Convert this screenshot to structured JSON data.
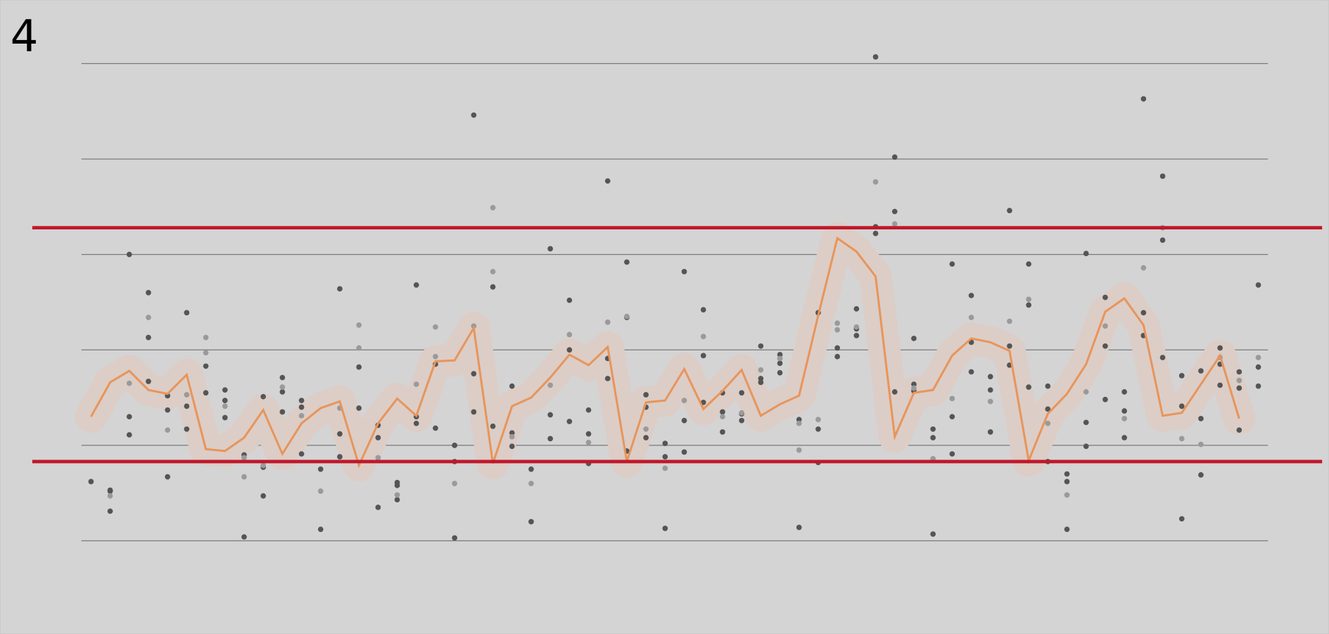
{
  "chart_data": {
    "type": "scatter",
    "title": "4",
    "xlim": [
      -0.5,
      61.5
    ],
    "ylim": [
      0,
      5
    ],
    "yticks": [
      0,
      1,
      2,
      3,
      4,
      5
    ],
    "grid": true,
    "thresholds": [
      0.83,
      3.28
    ],
    "threshold_color": "#c0182a",
    "mean": {
      "color": "#e8955a",
      "halo_color": "#dccdc7",
      "x": [
        0,
        1,
        2,
        3,
        4,
        5,
        6,
        7,
        8,
        9,
        10,
        11,
        12,
        13,
        14,
        15,
        16,
        17,
        18,
        19,
        20,
        21,
        22,
        23,
        24,
        25,
        26,
        27,
        28,
        29,
        30,
        31,
        32,
        33,
        34,
        35,
        36,
        37,
        38,
        39,
        40,
        41,
        42,
        43,
        44,
        45,
        46,
        47,
        48,
        49,
        50,
        51,
        52,
        53,
        54,
        55,
        56,
        57,
        58,
        59,
        60
      ],
      "values": [
        1.3,
        1.66,
        1.78,
        1.58,
        1.54,
        1.74,
        0.96,
        0.94,
        1.08,
        1.37,
        0.91,
        1.23,
        1.39,
        1.46,
        0.79,
        1.23,
        1.49,
        1.31,
        1.88,
        1.89,
        2.23,
        0.81,
        1.41,
        1.5,
        1.71,
        1.95,
        1.84,
        2.03,
        0.83,
        1.45,
        1.47,
        1.8,
        1.38,
        1.57,
        1.79,
        1.31,
        1.43,
        1.52,
        2.36,
        3.17,
        3.03,
        2.77,
        1.09,
        1.55,
        1.58,
        1.94,
        2.12,
        2.08,
        1.99,
        0.84,
        1.33,
        1.54,
        1.85,
        2.4,
        2.54,
        2.26,
        1.31,
        1.34,
        1.64,
        1.94,
        1.28
      ]
    },
    "series": [
      {
        "color": "#555555",
        "x": [
          0,
          1,
          1,
          1,
          2,
          2,
          2,
          3,
          3,
          3,
          4,
          4,
          4,
          5,
          5,
          5,
          6,
          6,
          7,
          7,
          7,
          8,
          8,
          9,
          9,
          9,
          10,
          10,
          10,
          11,
          11,
          11,
          12,
          12,
          13,
          13,
          13,
          14,
          14,
          15,
          15,
          15,
          16,
          16,
          16,
          17,
          17,
          17,
          18,
          18,
          19,
          19,
          19,
          20,
          20,
          20,
          21,
          21,
          22,
          22,
          22,
          23,
          23,
          24,
          24,
          24,
          25,
          25,
          25,
          26,
          26,
          26,
          27,
          27,
          27,
          28,
          28,
          28,
          29,
          29,
          29,
          30,
          30,
          30,
          31,
          31,
          31,
          32,
          32,
          32,
          33,
          33,
          33,
          34,
          34,
          34,
          35,
          35,
          35,
          36,
          36,
          36,
          37,
          37,
          38,
          38,
          38,
          39,
          39,
          40,
          40,
          40,
          41,
          41,
          41,
          42,
          42,
          42,
          43,
          43,
          43,
          44,
          44,
          44,
          45,
          45,
          45,
          46,
          46,
          46,
          47,
          47,
          47,
          48,
          48,
          48,
          49,
          49,
          49,
          50,
          50,
          50,
          51,
          51,
          51,
          52,
          52,
          52,
          53,
          53,
          53,
          54,
          54,
          54,
          55,
          55,
          55,
          56,
          56,
          56,
          57,
          57,
          57,
          58,
          58,
          58,
          59,
          59,
          59,
          60,
          60,
          60,
          61,
          61,
          61
        ],
        "values": [
          0.62,
          0.53,
          0.31,
          0.52,
          3.0,
          1.3,
          1.11,
          2.6,
          2.13,
          1.67,
          1.52,
          1.37,
          0.67,
          2.39,
          1.41,
          1.17,
          1.83,
          1.55,
          1.58,
          1.47,
          1.29,
          0.9,
          0.04,
          1.51,
          0.77,
          0.47,
          1.71,
          1.56,
          1.35,
          1.47,
          1.4,
          0.91,
          0.75,
          0.12,
          2.64,
          1.12,
          0.88,
          1.82,
          1.39,
          1.21,
          1.08,
          0.35,
          0.61,
          0.58,
          0.43,
          2.68,
          1.3,
          1.23,
          1.85,
          1.18,
          1.0,
          0.83,
          0.03,
          4.46,
          1.75,
          1.35,
          2.66,
          1.2,
          1.62,
          1.13,
          0.99,
          0.75,
          0.2,
          3.06,
          1.32,
          1.07,
          2.52,
          2.0,
          1.25,
          1.37,
          1.12,
          0.81,
          3.77,
          1.91,
          1.7,
          2.92,
          2.34,
          0.94,
          1.53,
          1.4,
          1.08,
          1.02,
          0.88,
          0.13,
          2.82,
          1.26,
          0.93,
          2.42,
          1.94,
          1.45,
          1.55,
          1.35,
          1.14,
          1.55,
          1.33,
          1.26,
          2.04,
          1.7,
          1.66,
          1.95,
          1.86,
          1.76,
          1.27,
          0.14,
          2.39,
          1.17,
          0.82,
          2.02,
          1.93,
          2.43,
          2.22,
          2.15,
          5.07,
          3.29,
          3.22,
          4.02,
          3.45,
          1.56,
          2.12,
          1.64,
          1.57,
          1.17,
          1.08,
          0.07,
          2.9,
          1.3,
          0.91,
          2.57,
          2.08,
          1.77,
          1.72,
          1.58,
          1.14,
          3.46,
          2.04,
          1.84,
          2.9,
          2.47,
          1.61,
          1.62,
          1.38,
          0.83,
          0.7,
          0.62,
          0.12,
          3.01,
          1.24,
          0.99,
          2.55,
          2.04,
          1.48,
          1.56,
          1.36,
          1.08,
          4.63,
          2.39,
          2.15,
          3.82,
          3.15,
          1.92,
          1.73,
          1.41,
          0.23,
          1.78,
          1.28,
          0.69,
          2.02,
          1.85,
          1.63,
          1.77,
          1.6,
          1.16,
          2.68,
          1.82,
          1.62
        ]
      },
      {
        "color": "#9a9a9a",
        "x": [
          1,
          2,
          3,
          4,
          5,
          6,
          6,
          7,
          8,
          8,
          9,
          10,
          11,
          12,
          13,
          14,
          14,
          15,
          16,
          17,
          18,
          18,
          19,
          20,
          21,
          21,
          22,
          23,
          24,
          25,
          26,
          27,
          28,
          29,
          30,
          31,
          32,
          33,
          34,
          35,
          36,
          37,
          37,
          38,
          39,
          39,
          40,
          41,
          42,
          43,
          44,
          45,
          46,
          47,
          48,
          49,
          50,
          51,
          52,
          53,
          54,
          55,
          56,
          57,
          58,
          59,
          60,
          61
        ],
        "values": [
          0.47,
          1.65,
          2.34,
          1.16,
          1.53,
          2.13,
          1.97,
          1.41,
          0.87,
          0.67,
          0.79,
          1.61,
          1.31,
          0.52,
          1.39,
          2.26,
          2.02,
          0.87,
          0.48,
          1.64,
          2.24,
          1.93,
          0.6,
          2.25,
          3.49,
          2.82,
          1.09,
          0.6,
          1.63,
          2.16,
          1.03,
          2.29,
          2.35,
          1.17,
          0.76,
          1.47,
          2.14,
          1.3,
          1.34,
          1.79,
          1.91,
          1.23,
          0.95,
          1.27,
          2.28,
          2.21,
          2.24,
          3.76,
          3.32,
          1.6,
          0.86,
          1.49,
          2.34,
          1.46,
          2.3,
          2.53,
          1.23,
          0.48,
          1.56,
          2.25,
          1.28,
          2.86,
          3.28,
          1.07,
          1.01,
          1.92,
          1.68,
          1.92
        ]
      }
    ]
  }
}
